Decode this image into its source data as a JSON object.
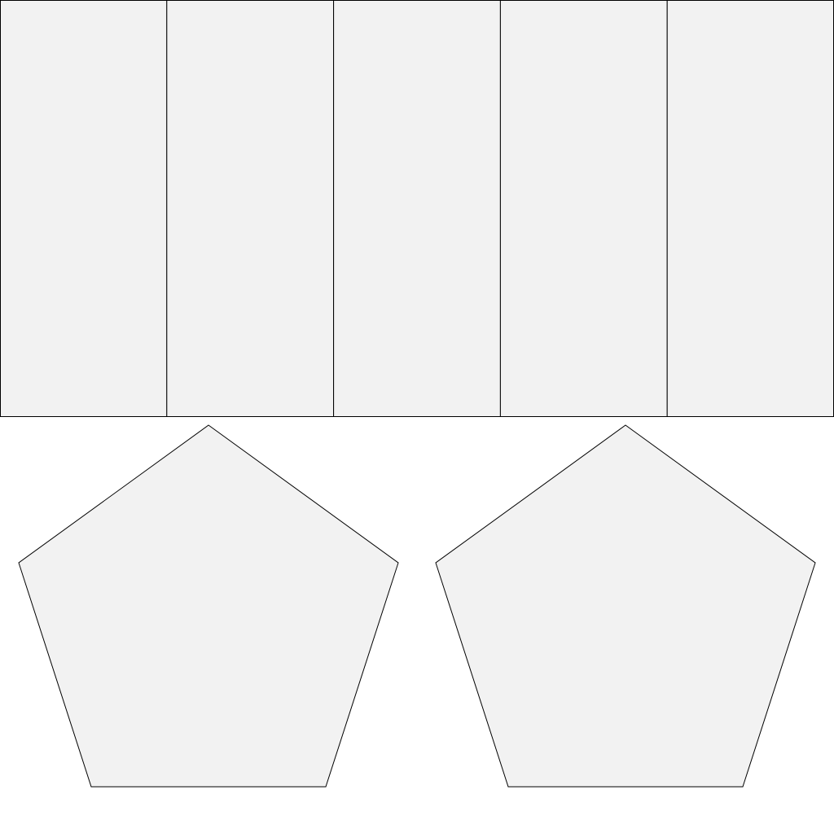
{
  "diagram": {
    "description_free": true,
    "rectangle_strip": {
      "segments": 5
    },
    "pentagons": {
      "count": 2
    }
  },
  "colors": {
    "fill": "#f2f2f2",
    "stroke": "#000000",
    "background": "#ffffff"
  }
}
